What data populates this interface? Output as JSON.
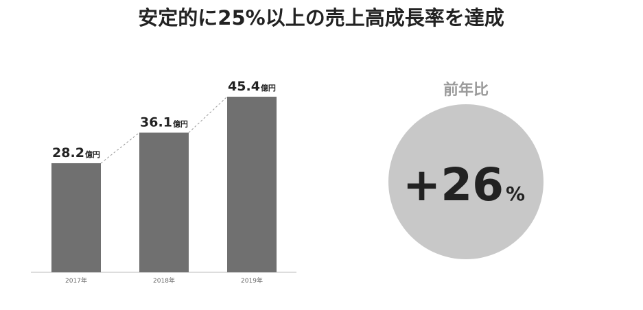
{
  "chart_data": {
    "type": "bar",
    "title": "安定的に25%以上の売上高成長率を達成",
    "categories": [
      "2017年",
      "2018年",
      "2019年"
    ],
    "values": [
      28.2,
      36.1,
      45.4
    ],
    "value_unit": "億円",
    "color": "#707070",
    "comparison": {
      "title": "前年比",
      "text": "+26",
      "unit": "%"
    }
  }
}
